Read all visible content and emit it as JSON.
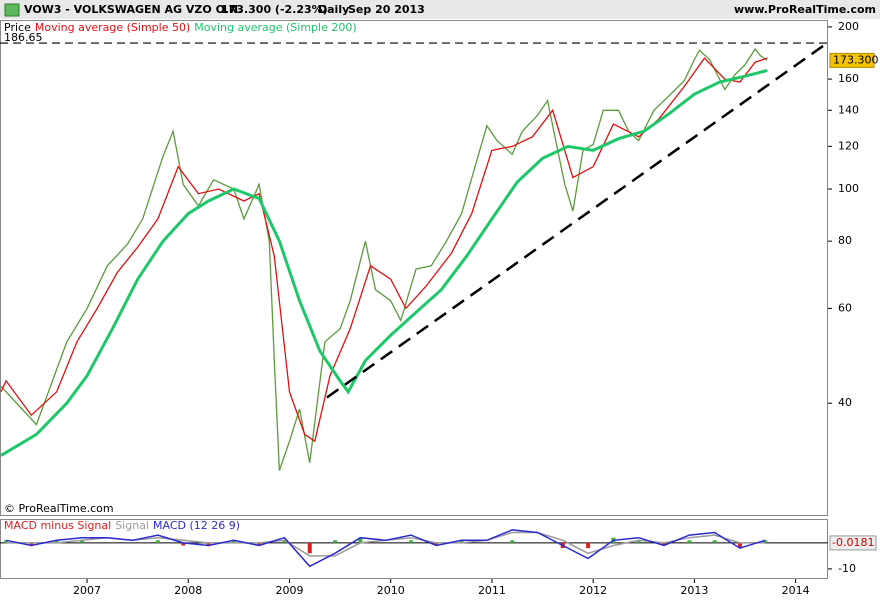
{
  "header": {
    "symbol": "VOW3 - VOLKSWAGEN AG VZO O.N.",
    "quote": "173.300 (-2.23%)",
    "period": "Daily",
    "date": "Sep 20 2013",
    "site": "www.ProRealTime.com"
  },
  "chart_data": [
    {
      "type": "line",
      "log_scale": true,
      "grid": false,
      "xlim": [
        2006.14,
        2014.32
      ],
      "xticks": [
        2007,
        2008,
        2009,
        2010,
        2011,
        2012,
        2013,
        2014
      ],
      "ylim": [
        24.8,
        206
      ],
      "yticks": [
        40,
        60,
        80,
        100,
        120,
        140,
        160,
        200
      ],
      "series": [
        {
          "name": "Price",
          "color": "#5c9a3c",
          "x": [
            2006.15,
            2006.5,
            2006.8,
            2007.0,
            2007.2,
            2007.4,
            2007.55,
            2007.75,
            2007.85,
            2007.95,
            2008.1,
            2008.25,
            2008.45,
            2008.55,
            2008.7,
            2008.8,
            2008.85,
            2008.9,
            2009.0,
            2009.1,
            2009.2,
            2009.35,
            2009.5,
            2009.6,
            2009.75,
            2009.85,
            2010.0,
            2010.1,
            2010.25,
            2010.4,
            2010.55,
            2010.7,
            2010.85,
            2010.95,
            2011.05,
            2011.2,
            2011.3,
            2011.45,
            2011.55,
            2011.65,
            2011.72,
            2011.8,
            2011.9,
            2012.0,
            2012.1,
            2012.25,
            2012.35,
            2012.45,
            2012.6,
            2012.75,
            2012.9,
            2013.0,
            2013.05,
            2013.15,
            2013.3,
            2013.4,
            2013.5,
            2013.6,
            2013.65,
            2013.72
          ],
          "values": [
            43,
            36.5,
            52,
            60,
            72,
            79,
            88,
            115,
            128,
            102,
            93,
            104,
            100,
            88,
            102,
            80,
            48,
            30,
            34,
            39,
            31,
            52,
            55,
            62,
            80,
            65,
            62,
            57,
            71,
            72,
            80,
            90,
            113,
            131,
            123,
            116,
            128,
            137,
            146,
            118,
            102,
            91,
            118,
            121,
            140,
            140,
            128,
            123,
            140,
            149,
            159,
            174,
            181,
            174,
            153,
            163,
            170,
            182,
            177,
            173.3
          ]
        },
        {
          "name": "Moving average (Simple 50)",
          "color": "#e01010",
          "x": [
            2006.15,
            2006.2,
            2006.45,
            2006.7,
            2006.9,
            2007.1,
            2007.3,
            2007.5,
            2007.7,
            2007.9,
            2008.1,
            2008.3,
            2008.55,
            2008.7,
            2008.85,
            2009.0,
            2009.15,
            2009.25,
            2009.4,
            2009.6,
            2009.8,
            2010.0,
            2010.15,
            2010.35,
            2010.6,
            2010.8,
            2011.0,
            2011.2,
            2011.4,
            2011.6,
            2011.8,
            2012.0,
            2012.2,
            2012.45,
            2012.65,
            2012.9,
            2013.1,
            2013.3,
            2013.45,
            2013.6,
            2013.72
          ],
          "values": [
            42,
            44,
            38,
            42,
            52,
            60,
            70,
            78,
            88,
            110,
            98,
            100,
            95,
            98,
            75,
            42,
            35,
            34,
            45,
            55,
            72,
            68,
            60,
            66,
            76,
            90,
            118,
            120,
            125,
            140,
            105,
            110,
            132,
            125,
            135,
            155,
            175,
            160,
            158,
            172,
            175
          ]
        },
        {
          "name": "Moving average (Simple 200)",
          "color": "#1ec86a",
          "x": [
            2006.15,
            2006.5,
            2006.8,
            2007.0,
            2007.25,
            2007.5,
            2007.75,
            2008.0,
            2008.2,
            2008.45,
            2008.7,
            2008.9,
            2009.1,
            2009.3,
            2009.5,
            2009.58,
            2009.75,
            2010.0,
            2010.25,
            2010.5,
            2010.75,
            2011.0,
            2011.25,
            2011.5,
            2011.75,
            2012.0,
            2012.25,
            2012.5,
            2012.75,
            2013.0,
            2013.25,
            2013.5,
            2013.72
          ],
          "values": [
            32,
            35,
            40,
            45,
            55,
            68,
            80,
            90,
            95,
            100,
            96,
            80,
            62,
            50,
            44,
            42,
            48,
            53.5,
            59,
            65,
            75,
            88,
            103,
            114,
            120,
            118,
            124,
            128,
            138,
            150,
            158,
            162,
            166
          ]
        }
      ],
      "hline": {
        "value": 186.65,
        "label": "186.65"
      },
      "trendline": {
        "x": [
          2009.37,
          2014.3
        ],
        "values": [
          41,
          186
        ]
      },
      "last_price": {
        "value": 173.3,
        "label": "173.300"
      },
      "copyright": "© ProRealTime.com"
    },
    {
      "type": "combo",
      "ylim": [
        -13.5,
        8.8
      ],
      "yticks": [
        -10
      ],
      "zero_line": 0,
      "x": [
        2006.2,
        2006.45,
        2006.7,
        2006.95,
        2007.2,
        2007.45,
        2007.7,
        2007.95,
        2008.2,
        2008.45,
        2008.7,
        2008.95,
        2009.2,
        2009.45,
        2009.7,
        2009.95,
        2010.2,
        2010.45,
        2010.7,
        2010.95,
        2011.2,
        2011.45,
        2011.7,
        2011.95,
        2012.2,
        2012.45,
        2012.7,
        2012.95,
        2013.2,
        2013.45,
        2013.7
      ],
      "series": [
        {
          "name": "MACD minus Signal",
          "kind": "bar",
          "positive_color": "#3cb03c",
          "negative_color": "#e02020",
          "values": [
            1,
            -1,
            1,
            1,
            0,
            0,
            1,
            -1,
            -1,
            1,
            -1,
            1,
            -4,
            1,
            2,
            0,
            1,
            -1,
            1,
            0,
            1,
            0,
            -2,
            -2,
            2,
            1,
            -1,
            1,
            1,
            -2,
            1
          ]
        },
        {
          "name": "Signal",
          "kind": "line",
          "color": "#9a9a9a",
          "values": [
            0,
            0,
            0,
            1,
            2,
            1,
            2,
            1,
            0,
            0,
            0,
            1,
            -5,
            -5,
            0,
            1,
            2,
            0,
            0,
            1,
            4,
            4,
            1,
            -4,
            -1,
            1,
            0,
            2,
            3,
            0,
            0
          ]
        },
        {
          "name": "MACD (12 26 9)",
          "kind": "line",
          "color": "#2a2ad0",
          "values": [
            1,
            -1,
            1,
            2,
            2,
            1,
            3,
            0,
            -1,
            1,
            -1,
            2,
            -9,
            -4,
            2,
            1,
            3,
            -1,
            1,
            1,
            5,
            4,
            -1,
            -6,
            1,
            2,
            -1,
            3,
            4,
            -2,
            1
          ]
        }
      ],
      "last_value": {
        "value": -0.0181,
        "label": "-0.0181"
      }
    }
  ]
}
